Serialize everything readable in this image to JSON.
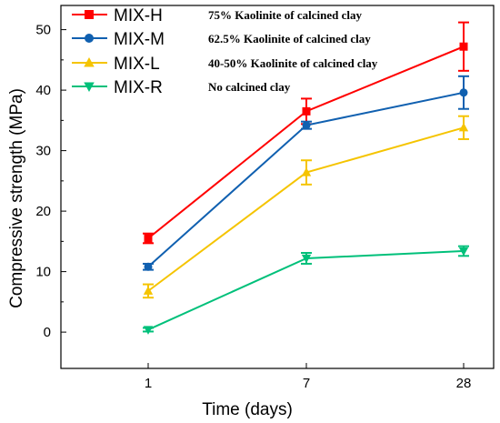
{
  "chart_data": {
    "type": "line",
    "title": "",
    "xlabel": "Time (days)",
    "ylabel": "Compressive strength (MPa)",
    "categories": [
      "1",
      "7",
      "28"
    ],
    "ylim": [
      -6,
      54
    ],
    "yticks": [
      0,
      10,
      20,
      30,
      40,
      50
    ],
    "grid": false,
    "legend_position": "top-left",
    "series": [
      {
        "name": "MIX-H",
        "description": "75% Kaolinite of calcined clay",
        "color": "#ff0000",
        "marker": "square",
        "values": [
          15.5,
          36.5,
          47.2
        ],
        "errors": [
          0.8,
          2.1,
          4.0
        ]
      },
      {
        "name": "MIX-M",
        "description": "62.5% Kaolinite of calcined clay",
        "color": "#1060b0",
        "marker": "circle",
        "values": [
          10.8,
          34.2,
          39.6
        ],
        "errors": [
          0.5,
          0.6,
          2.7
        ]
      },
      {
        "name": "MIX-L",
        "description": "40-50% Kaolinite of calcined clay",
        "color": "#f5c400",
        "marker": "triangle-up",
        "values": [
          6.8,
          26.4,
          33.8
        ],
        "errors": [
          1.1,
          2.0,
          1.9
        ]
      },
      {
        "name": "MIX-R",
        "description": "No calcined clay",
        "color": "#00c07a",
        "marker": "triangle-down",
        "values": [
          0.4,
          12.2,
          13.4
        ],
        "errors": [
          0.3,
          0.9,
          0.8
        ]
      }
    ]
  }
}
